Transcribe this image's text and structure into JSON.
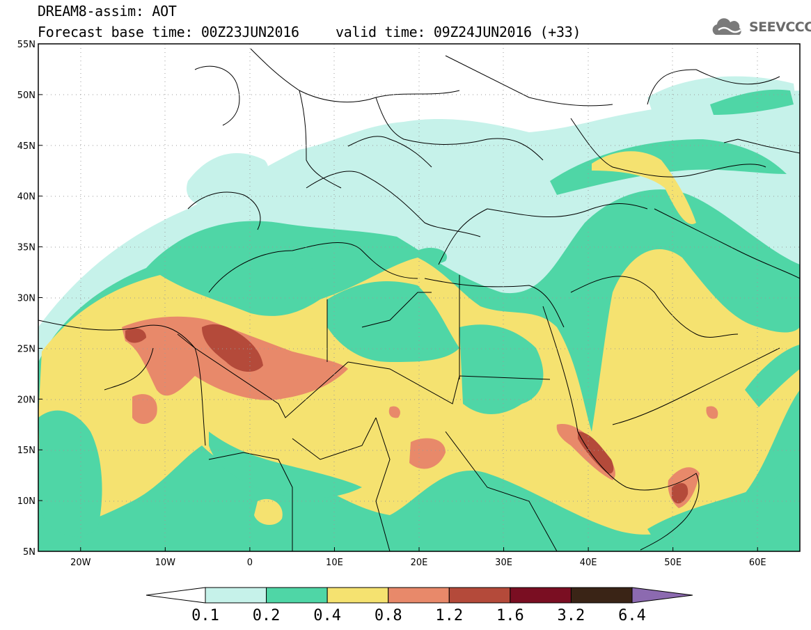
{
  "header": {
    "title": "DREAM8-assim: AOT",
    "base_time": "Forecast base time: 00Z23JUN2016",
    "valid_time": "valid time: 09Z24JUN2016 (+33)",
    "logo_text": "SEEVCCC"
  },
  "map": {
    "lon_range": [
      -25,
      65
    ],
    "lat_range": [
      5,
      55
    ],
    "lat_ticks": [
      "5N",
      "10N",
      "15N",
      "20N",
      "25N",
      "30N",
      "35N",
      "40N",
      "45N",
      "50N",
      "55N"
    ],
    "lon_ticks": [
      "20W",
      "10W",
      "0",
      "10E",
      "20E",
      "30E",
      "40E",
      "50E",
      "60E"
    ]
  },
  "legend": {
    "labels": [
      "0.1",
      "0.2",
      "0.4",
      "0.8",
      "1.2",
      "1.6",
      "3.2",
      "6.4"
    ],
    "colors": [
      "#c6f2ea",
      "#4fd6a6",
      "#f5e270",
      "#e8896a",
      "#b44a3a",
      "#7a0e22",
      "#3a2416",
      "#8c6ab0"
    ]
  }
}
